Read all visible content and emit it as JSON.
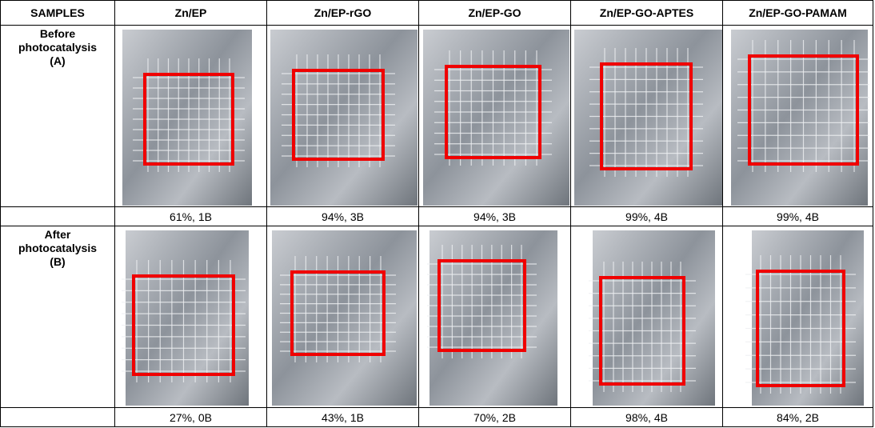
{
  "header": {
    "columns": [
      "SAMPLES",
      "Zn/EP",
      "Zn/EP-rGO",
      "Zn/EP-GO",
      "Zn/EP-GO-APTES",
      "Zn/EP-GO-PAMAM"
    ]
  },
  "rows": [
    {
      "label": [
        "Before",
        "photocatalysis",
        "(A)"
      ],
      "results": [
        "61%, 1B",
        "94%, 3B",
        "94%, 3B",
        "99%, 4B",
        "99%, 4B"
      ]
    },
    {
      "label": [
        "After",
        "photocatalysis",
        "(B)"
      ],
      "results": [
        "27%, 0B",
        "43%, 1B",
        "70%, 2B",
        "98%, 4B",
        "84%, 2B"
      ]
    }
  ]
}
